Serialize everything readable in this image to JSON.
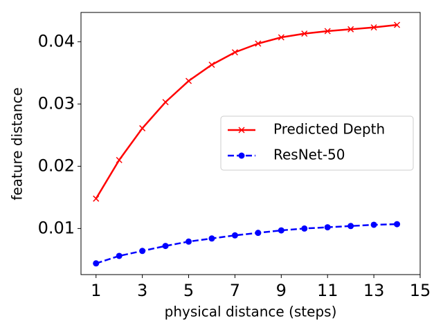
{
  "chart_data": {
    "type": "line",
    "xlabel": "physical distance (steps)",
    "ylabel": "feature distance",
    "x": [
      1,
      2,
      3,
      4,
      5,
      6,
      7,
      8,
      9,
      10,
      11,
      12,
      13,
      14
    ],
    "series": [
      {
        "name": "Predicted Depth",
        "color": "#ff0000",
        "marker": "x",
        "linestyle": "solid",
        "values": [
          0.0148,
          0.021,
          0.0261,
          0.0303,
          0.0337,
          0.0363,
          0.0383,
          0.0397,
          0.0407,
          0.0413,
          0.0417,
          0.042,
          0.0423,
          0.0427
        ]
      },
      {
        "name": "ResNet-50",
        "color": "#0000ff",
        "marker": "o",
        "linestyle": "dashed",
        "values": [
          0.0044,
          0.0056,
          0.0064,
          0.0072,
          0.0079,
          0.0084,
          0.0089,
          0.0093,
          0.0097,
          0.01,
          0.0102,
          0.0104,
          0.0106,
          0.0107
        ]
      }
    ],
    "xlim": [
      0.35,
      15
    ],
    "ylim": [
      0.0026,
      0.0447
    ],
    "xticks": [
      1,
      3,
      5,
      7,
      9,
      11,
      13,
      15
    ],
    "yticks": [
      0.01,
      0.02,
      0.03,
      0.04
    ],
    "legend": "center right"
  }
}
